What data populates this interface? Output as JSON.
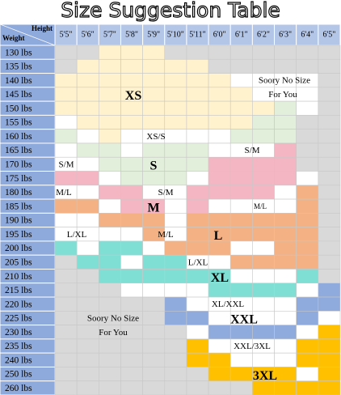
{
  "header": {
    "title": "Size Suggestion Table",
    "height_label": "Height",
    "weight_label": "Weight"
  },
  "table": {
    "columns": [
      "5'5\"",
      "5'6\"",
      "5'7\"",
      "5'8\"",
      "5'9\"",
      "5'10\"",
      "5'11\"",
      "6'0\"",
      "6'1\"",
      "6'2\"",
      "6'3\"",
      "6'4\"",
      "6'5\""
    ],
    "rows": [
      "130 lbs",
      "135 lbs",
      "140 lbs",
      "145 lbs",
      "150 lbs",
      "155 lbs",
      "160 lbs",
      "165 lbs",
      "170 lbs",
      "175 lbs",
      "180 lbs",
      "185 lbs",
      "190 lbs",
      "195 lbs",
      "200 lbs",
      "205 lbs",
      "210 lbs",
      "215 lbs",
      "220 lbs",
      "225 lbs",
      "230 lbs",
      "235 lbs",
      "240 lbs",
      "250 lbs",
      "260 lbs"
    ],
    "palette": {
      "G": "#d9d9d9",
      "Y": "#fff2cc",
      "W": "#ffffff",
      "E": "#e2efda",
      "P": "#f4b6c2",
      "O": "#f4b183",
      "T": "#7fdfd4",
      "B": "#8faadc",
      "D": "#ffc000"
    },
    "cells": [
      "GGYYYGGGGGGGG",
      "GYYYYYYGGGGGG",
      "YYYYYYYYWWWWG",
      "YYYYYYYYYWWWG",
      "YYYYYYYYYYEWG",
      "WYYYYYYYYEEGG",
      "EWYWWWWWEEEGG",
      "WEEWEEEWWWPGG",
      "WWEEEEEPPPPGG",
      "PPWEEEWPPPPWG",
      "WWPPWWPPPPWOG",
      "OOWPPWPWWWWOG",
      "WWOOOWOOOOOOG",
      "WWWWOWOOOOOOG",
      "TWTTWOOOWWOOG",
      "GTTWTTWWOOOOG",
      "GGTTTTTTWWWTG",
      "GGGWWWWTTTTWB",
      "GGGGGBWWWWWBB",
      "GGGGGBBWWWWBW",
      "GGGGGGWBBBBWD",
      "GGGGGGDWWWWDD",
      "GGGGGGDDWWWDD",
      "GGGGGGGDDDDWD",
      "GGGGGGGGGDDDD"
    ],
    "labels": [
      "Soory No Size",
      "For You",
      "XS",
      "XS/S",
      "S/M",
      "S/M",
      "S",
      "M/L",
      "S/M",
      "M",
      "M/L",
      "L/XL",
      "M/L",
      "L",
      "L/XL",
      "XL",
      "XL/XXL",
      "Soory No Size",
      "For You",
      "XXL",
      "XXL/3XL",
      "3XL"
    ]
  }
}
